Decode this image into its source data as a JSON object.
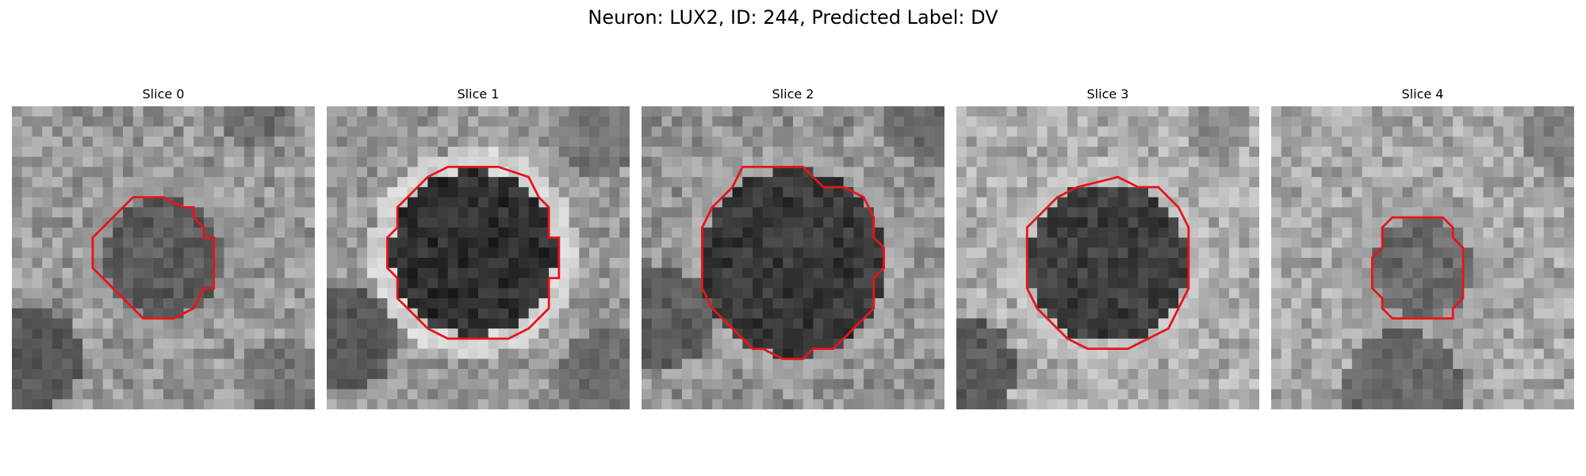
{
  "figure": {
    "title": "Neuron: LUX2, ID: 244, Predicted Label: DV"
  },
  "colors": {
    "contour": "#e8141a",
    "background": "#ffffff"
  },
  "panels": [
    {
      "title": "Slice 0"
    },
    {
      "title": "Slice 1"
    },
    {
      "title": "Slice 2"
    },
    {
      "title": "Slice 3"
    },
    {
      "title": "Slice 4"
    }
  ]
}
